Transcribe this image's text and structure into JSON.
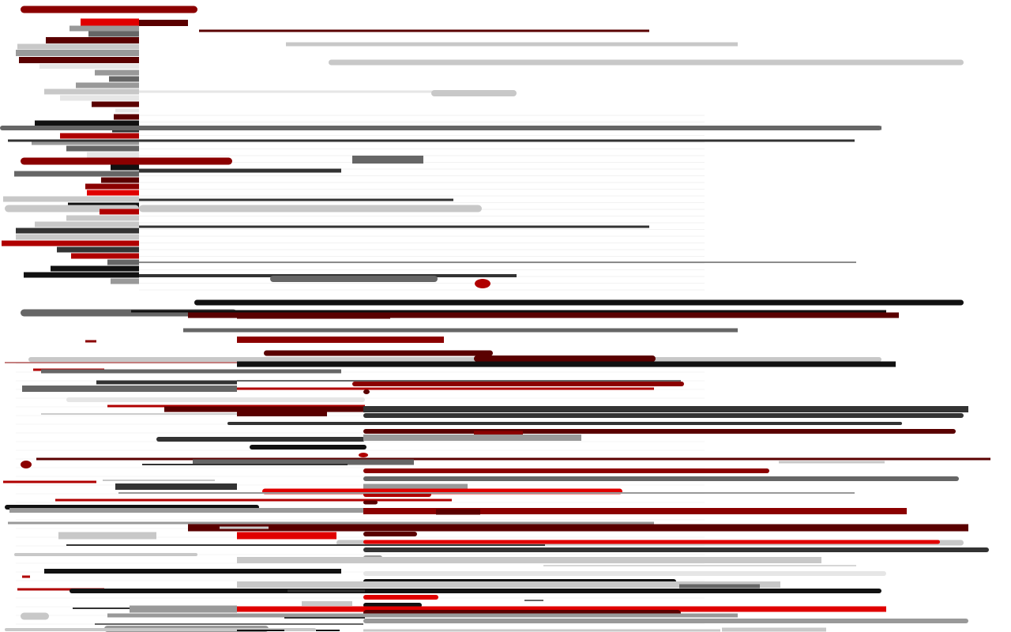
{
  "palette": {
    "red": "#e00000",
    "crimson": "#b00000",
    "dark_red": "#8b0000",
    "maroon": "#5a0000",
    "black": "#111111",
    "charcoal": "#333333",
    "dark_gray": "#666666",
    "gray": "#999999",
    "light_gray": "#c8c8c8",
    "pale_gray": "#e6e6e6",
    "background": "#ffffff"
  },
  "icons": [
    "red-dot-icon",
    "maroon-dot-icon"
  ]
}
